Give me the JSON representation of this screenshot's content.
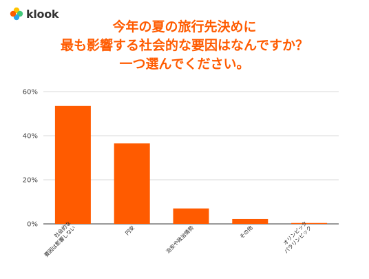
{
  "brand": {
    "name": "klook",
    "colors": {
      "orange": "#ff5b00",
      "blue": "#2fa4e7",
      "yellow": "#ffc400",
      "green": "#43c97c"
    }
  },
  "chart_data": {
    "type": "bar",
    "title_lines": [
      "今年の夏の旅行先決めに",
      "最も影響する社会的な要因はなんですか？",
      "一つ選んでください。"
    ],
    "categories": [
      [
        "社会的な",
        "要因は影響しない"
      ],
      [
        "円安"
      ],
      [
        "治安や政治情勢"
      ],
      [
        "その他"
      ],
      [
        "オリンピック",
        "パラリンピック"
      ]
    ],
    "values": [
      53.5,
      36.5,
      7,
      2.2,
      0.4
    ],
    "value_unit": "%",
    "ylim": [
      0,
      60
    ],
    "yticks": [
      "0%",
      "20%",
      "40%",
      "60%"
    ],
    "ytick_values": [
      0,
      20,
      40,
      60
    ],
    "grid": true,
    "bar_color": "#ff5b00",
    "xlabel": "",
    "ylabel": ""
  }
}
